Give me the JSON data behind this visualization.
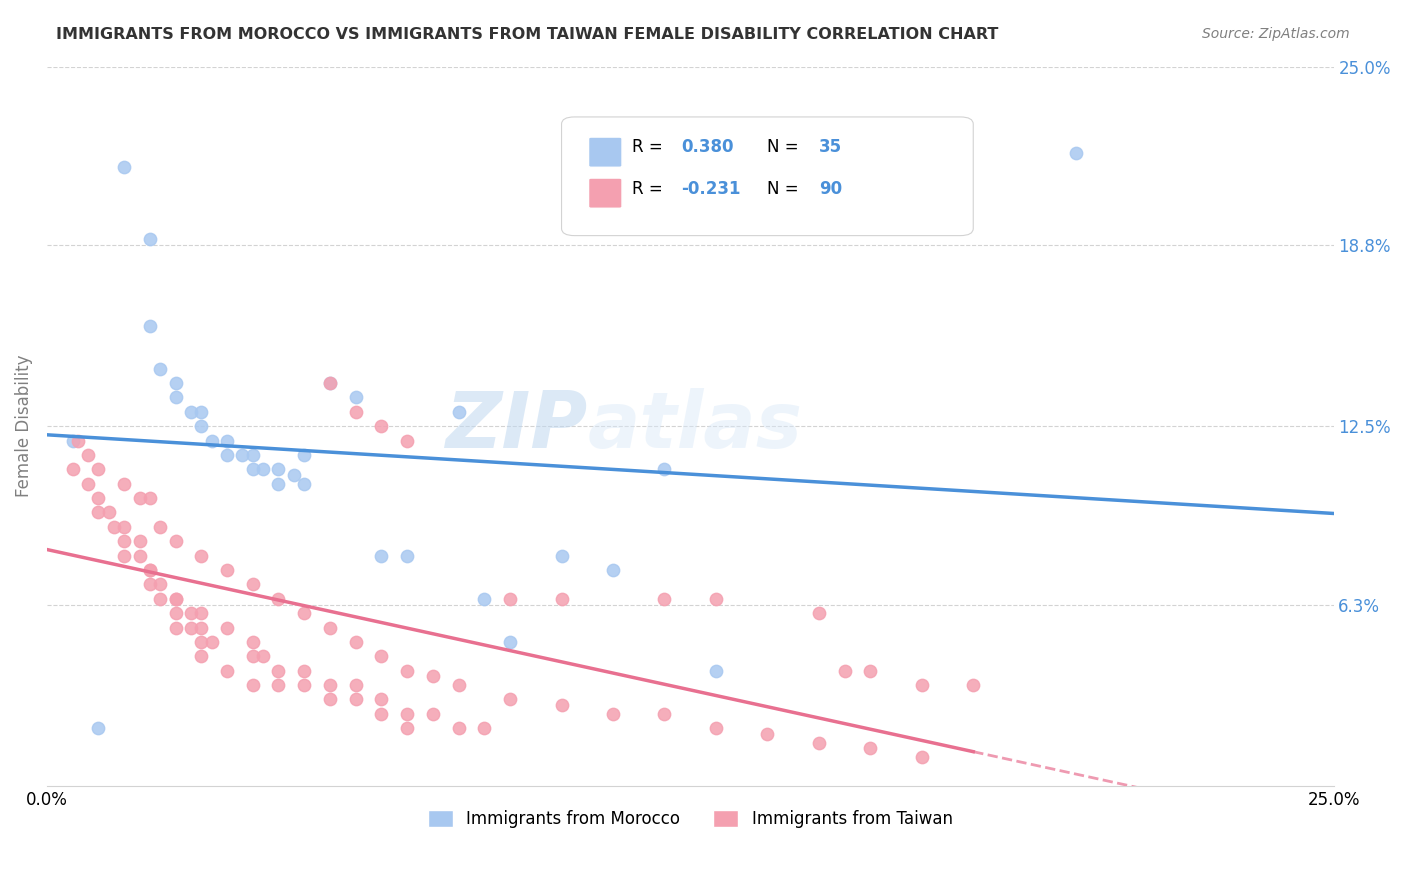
{
  "title": "IMMIGRANTS FROM MOROCCO VS IMMIGRANTS FROM TAIWAN FEMALE DISABILITY CORRELATION CHART",
  "source": "Source: ZipAtlas.com",
  "ylabel": "Female Disability",
  "xmin": 0.0,
  "xmax": 0.25,
  "ymin": 0.0,
  "ymax": 0.25,
  "yticks": [
    0.063,
    0.125,
    0.188,
    0.25
  ],
  "ytick_labels": [
    "6.3%",
    "12.5%",
    "18.8%",
    "25.0%"
  ],
  "morocco_R": 0.38,
  "morocco_N": 35,
  "taiwan_R": -0.231,
  "taiwan_N": 90,
  "morocco_color": "#a8c8f0",
  "taiwan_color": "#f4a0b0",
  "morocco_line_color": "#4a90d9",
  "taiwan_line_color": "#e87090",
  "watermark_zip": "ZIP",
  "watermark_atlas": "atlas",
  "legend_R_color": "#4a90d9",
  "morocco_scatter_x": [
    0.01,
    0.015,
    0.02,
    0.02,
    0.022,
    0.025,
    0.025,
    0.028,
    0.03,
    0.03,
    0.032,
    0.035,
    0.035,
    0.038,
    0.04,
    0.04,
    0.042,
    0.045,
    0.045,
    0.048,
    0.05,
    0.05,
    0.055,
    0.06,
    0.065,
    0.07,
    0.08,
    0.085,
    0.09,
    0.1,
    0.11,
    0.12,
    0.13,
    0.2,
    0.005
  ],
  "morocco_scatter_y": [
    0.02,
    0.215,
    0.19,
    0.16,
    0.145,
    0.14,
    0.135,
    0.13,
    0.13,
    0.125,
    0.12,
    0.12,
    0.115,
    0.115,
    0.115,
    0.11,
    0.11,
    0.11,
    0.105,
    0.108,
    0.105,
    0.115,
    0.14,
    0.135,
    0.08,
    0.08,
    0.13,
    0.065,
    0.05,
    0.08,
    0.075,
    0.11,
    0.04,
    0.22,
    0.12
  ],
  "taiwan_scatter_x": [
    0.005,
    0.008,
    0.01,
    0.01,
    0.012,
    0.013,
    0.015,
    0.015,
    0.015,
    0.018,
    0.018,
    0.02,
    0.02,
    0.02,
    0.022,
    0.022,
    0.025,
    0.025,
    0.025,
    0.025,
    0.028,
    0.028,
    0.03,
    0.03,
    0.03,
    0.03,
    0.032,
    0.035,
    0.035,
    0.04,
    0.04,
    0.04,
    0.042,
    0.045,
    0.045,
    0.05,
    0.05,
    0.055,
    0.055,
    0.06,
    0.06,
    0.065,
    0.065,
    0.07,
    0.07,
    0.075,
    0.08,
    0.085,
    0.09,
    0.1,
    0.12,
    0.13,
    0.15,
    0.155,
    0.16,
    0.17,
    0.18,
    0.006,
    0.008,
    0.01,
    0.015,
    0.018,
    0.02,
    0.022,
    0.025,
    0.03,
    0.035,
    0.04,
    0.045,
    0.05,
    0.055,
    0.06,
    0.065,
    0.07,
    0.075,
    0.08,
    0.09,
    0.1,
    0.11,
    0.12,
    0.13,
    0.14,
    0.15,
    0.16,
    0.17,
    0.055,
    0.06,
    0.065,
    0.07
  ],
  "taiwan_scatter_y": [
    0.11,
    0.105,
    0.1,
    0.095,
    0.095,
    0.09,
    0.09,
    0.085,
    0.08,
    0.085,
    0.08,
    0.075,
    0.075,
    0.07,
    0.07,
    0.065,
    0.065,
    0.065,
    0.06,
    0.055,
    0.06,
    0.055,
    0.055,
    0.05,
    0.06,
    0.045,
    0.05,
    0.055,
    0.04,
    0.05,
    0.045,
    0.035,
    0.045,
    0.04,
    0.035,
    0.04,
    0.035,
    0.035,
    0.03,
    0.035,
    0.03,
    0.03,
    0.025,
    0.025,
    0.02,
    0.025,
    0.02,
    0.02,
    0.065,
    0.065,
    0.065,
    0.065,
    0.06,
    0.04,
    0.04,
    0.035,
    0.035,
    0.12,
    0.115,
    0.11,
    0.105,
    0.1,
    0.1,
    0.09,
    0.085,
    0.08,
    0.075,
    0.07,
    0.065,
    0.06,
    0.055,
    0.05,
    0.045,
    0.04,
    0.038,
    0.035,
    0.03,
    0.028,
    0.025,
    0.025,
    0.02,
    0.018,
    0.015,
    0.013,
    0.01,
    0.14,
    0.13,
    0.125,
    0.12
  ]
}
